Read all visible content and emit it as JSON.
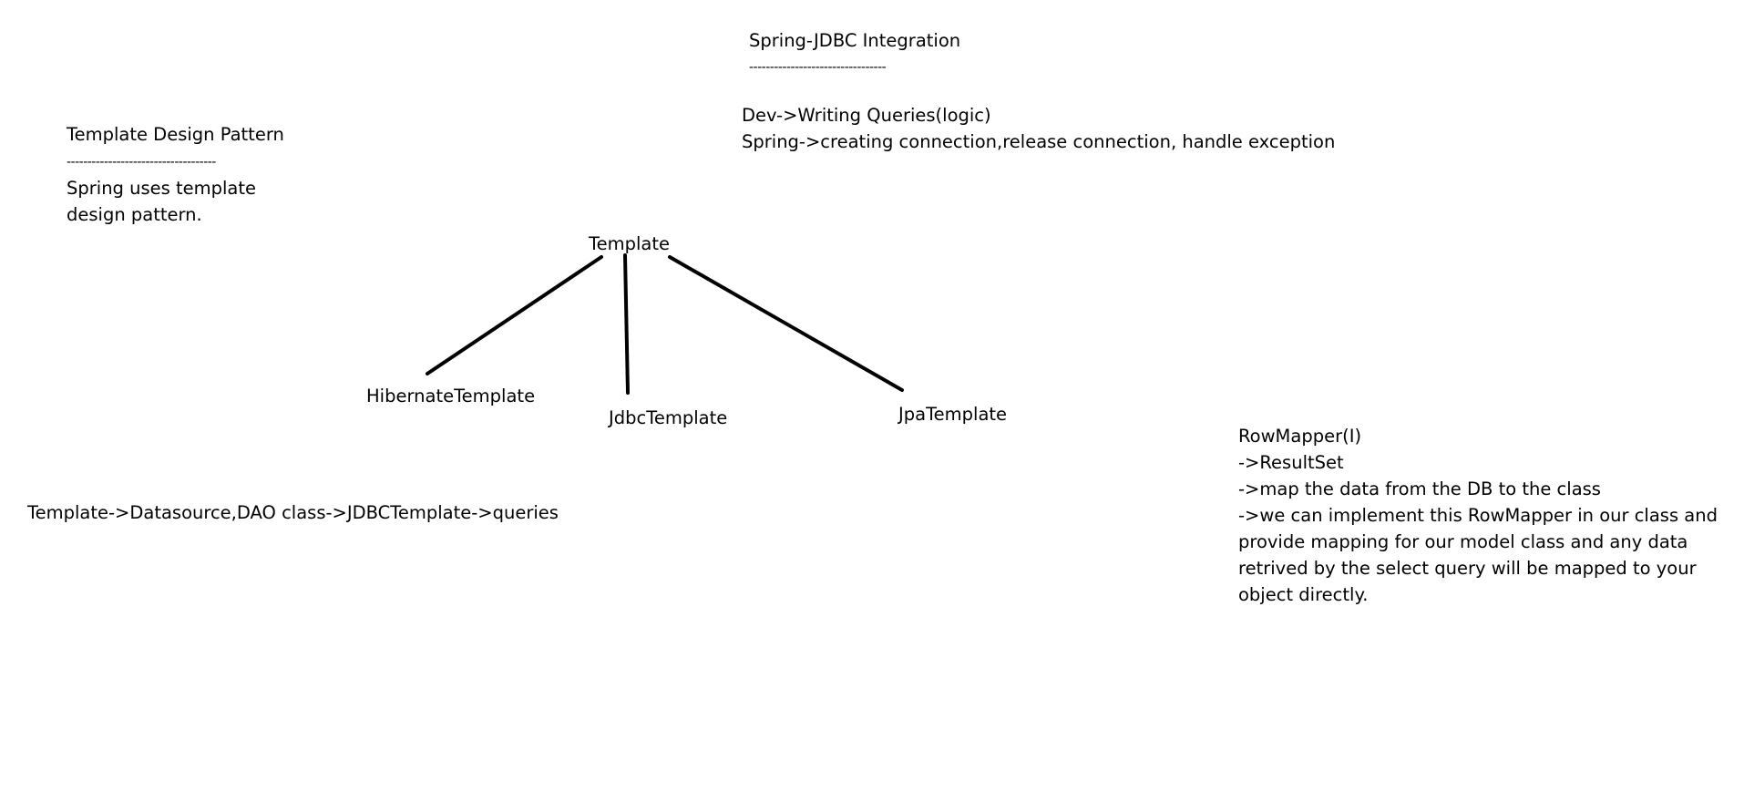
{
  "spring_jdbc": {
    "title": "Spring-JDBC Integration",
    "underline": "---------------------------------",
    "lines": [
      "Dev->Writing Queries(logic)",
      "Spring->creating connection,release connection, handle exception"
    ]
  },
  "template_pattern": {
    "title": "Template Design Pattern",
    "underline": "------------------------------------",
    "lines": [
      "Spring uses template",
      "design pattern."
    ]
  },
  "tree": {
    "root": "Template",
    "children": [
      "HibernateTemplate",
      "JdbcTemplate",
      "JpaTemplate"
    ]
  },
  "flow": {
    "text": "Template->Datasource,DAO class->JDBCTemplate->queries"
  },
  "rowmapper": {
    "lines": [
      "RowMapper(I)",
      "->ResultSet",
      "->map the data from the DB to the class",
      "->we can implement this RowMapper in our class and",
      "provide mapping for our model class and any data",
      "retrived by the select query will be mapped to your",
      "object directly."
    ]
  }
}
